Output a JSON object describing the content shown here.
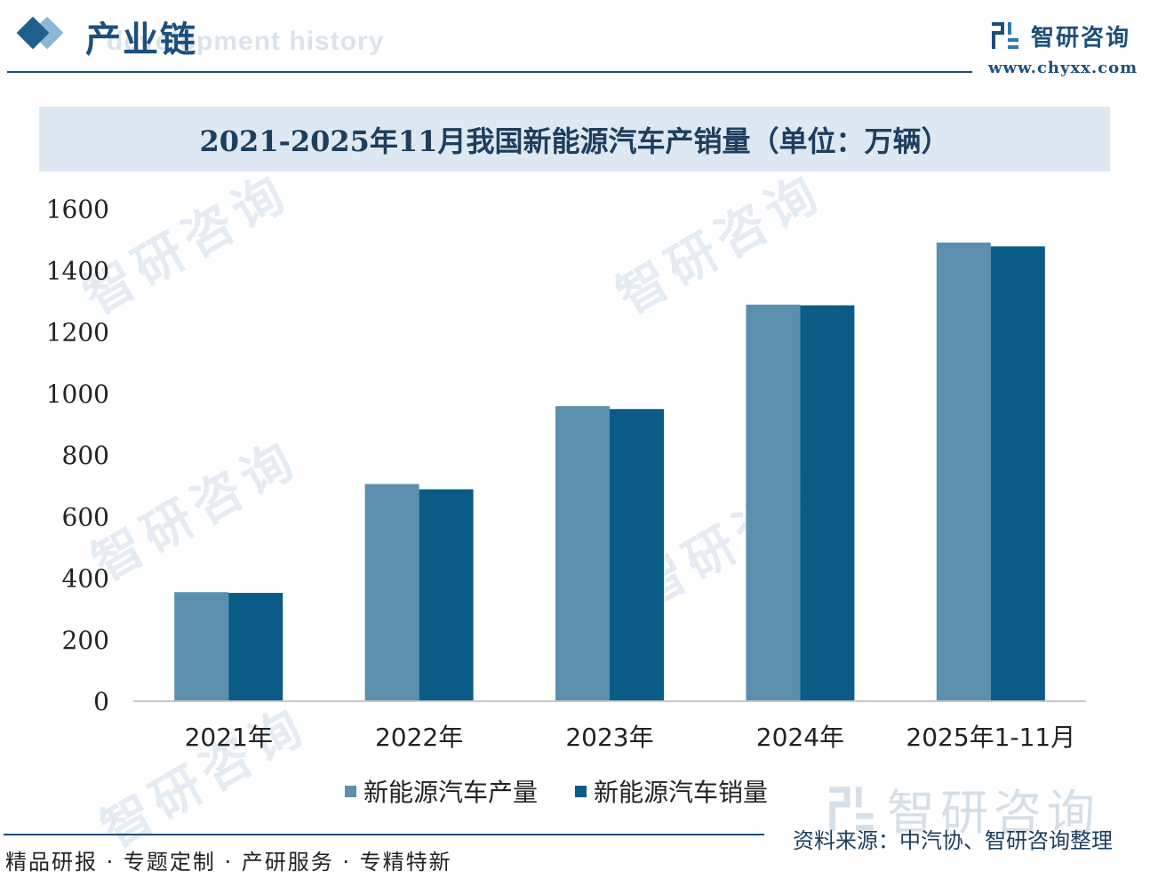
{
  "header": {
    "section_title": "产业链",
    "section_subtitle": "development history",
    "brand_name": "智研咨询",
    "brand_url": "www.chyxx.com"
  },
  "watermark": {
    "text": "智研咨询"
  },
  "footer": {
    "slogan": "精品研报 · 专题定制 · 产研服务 · 专精特新",
    "source": "资料来源：中汽协、智研咨询整理"
  },
  "colors": {
    "production": "#5b8fad",
    "sales": "#0a5b85",
    "brand": "#1d4f7c",
    "title_band": "#dde8f2"
  },
  "chart_data": {
    "type": "bar",
    "title": "2021-2025年11月我国新能源汽车产销量（单位：万辆）",
    "categories": [
      "2021年",
      "2022年",
      "2023年",
      "2024年",
      "2025年1-11月"
    ],
    "series": [
      {
        "name": "新能源汽车产量",
        "values": [
          354.5,
          705.8,
          958.7,
          1288.8,
          1490.7
        ]
      },
      {
        "name": "新能源汽车销量",
        "values": [
          352.1,
          688.7,
          949.5,
          1286.6,
          1478.0
        ]
      }
    ],
    "ylim": [
      0,
      1600
    ],
    "yticks": [
      0,
      200,
      400,
      600,
      800,
      1000,
      1200,
      1400,
      1600
    ],
    "grid": false,
    "legend_position": "bottom"
  }
}
